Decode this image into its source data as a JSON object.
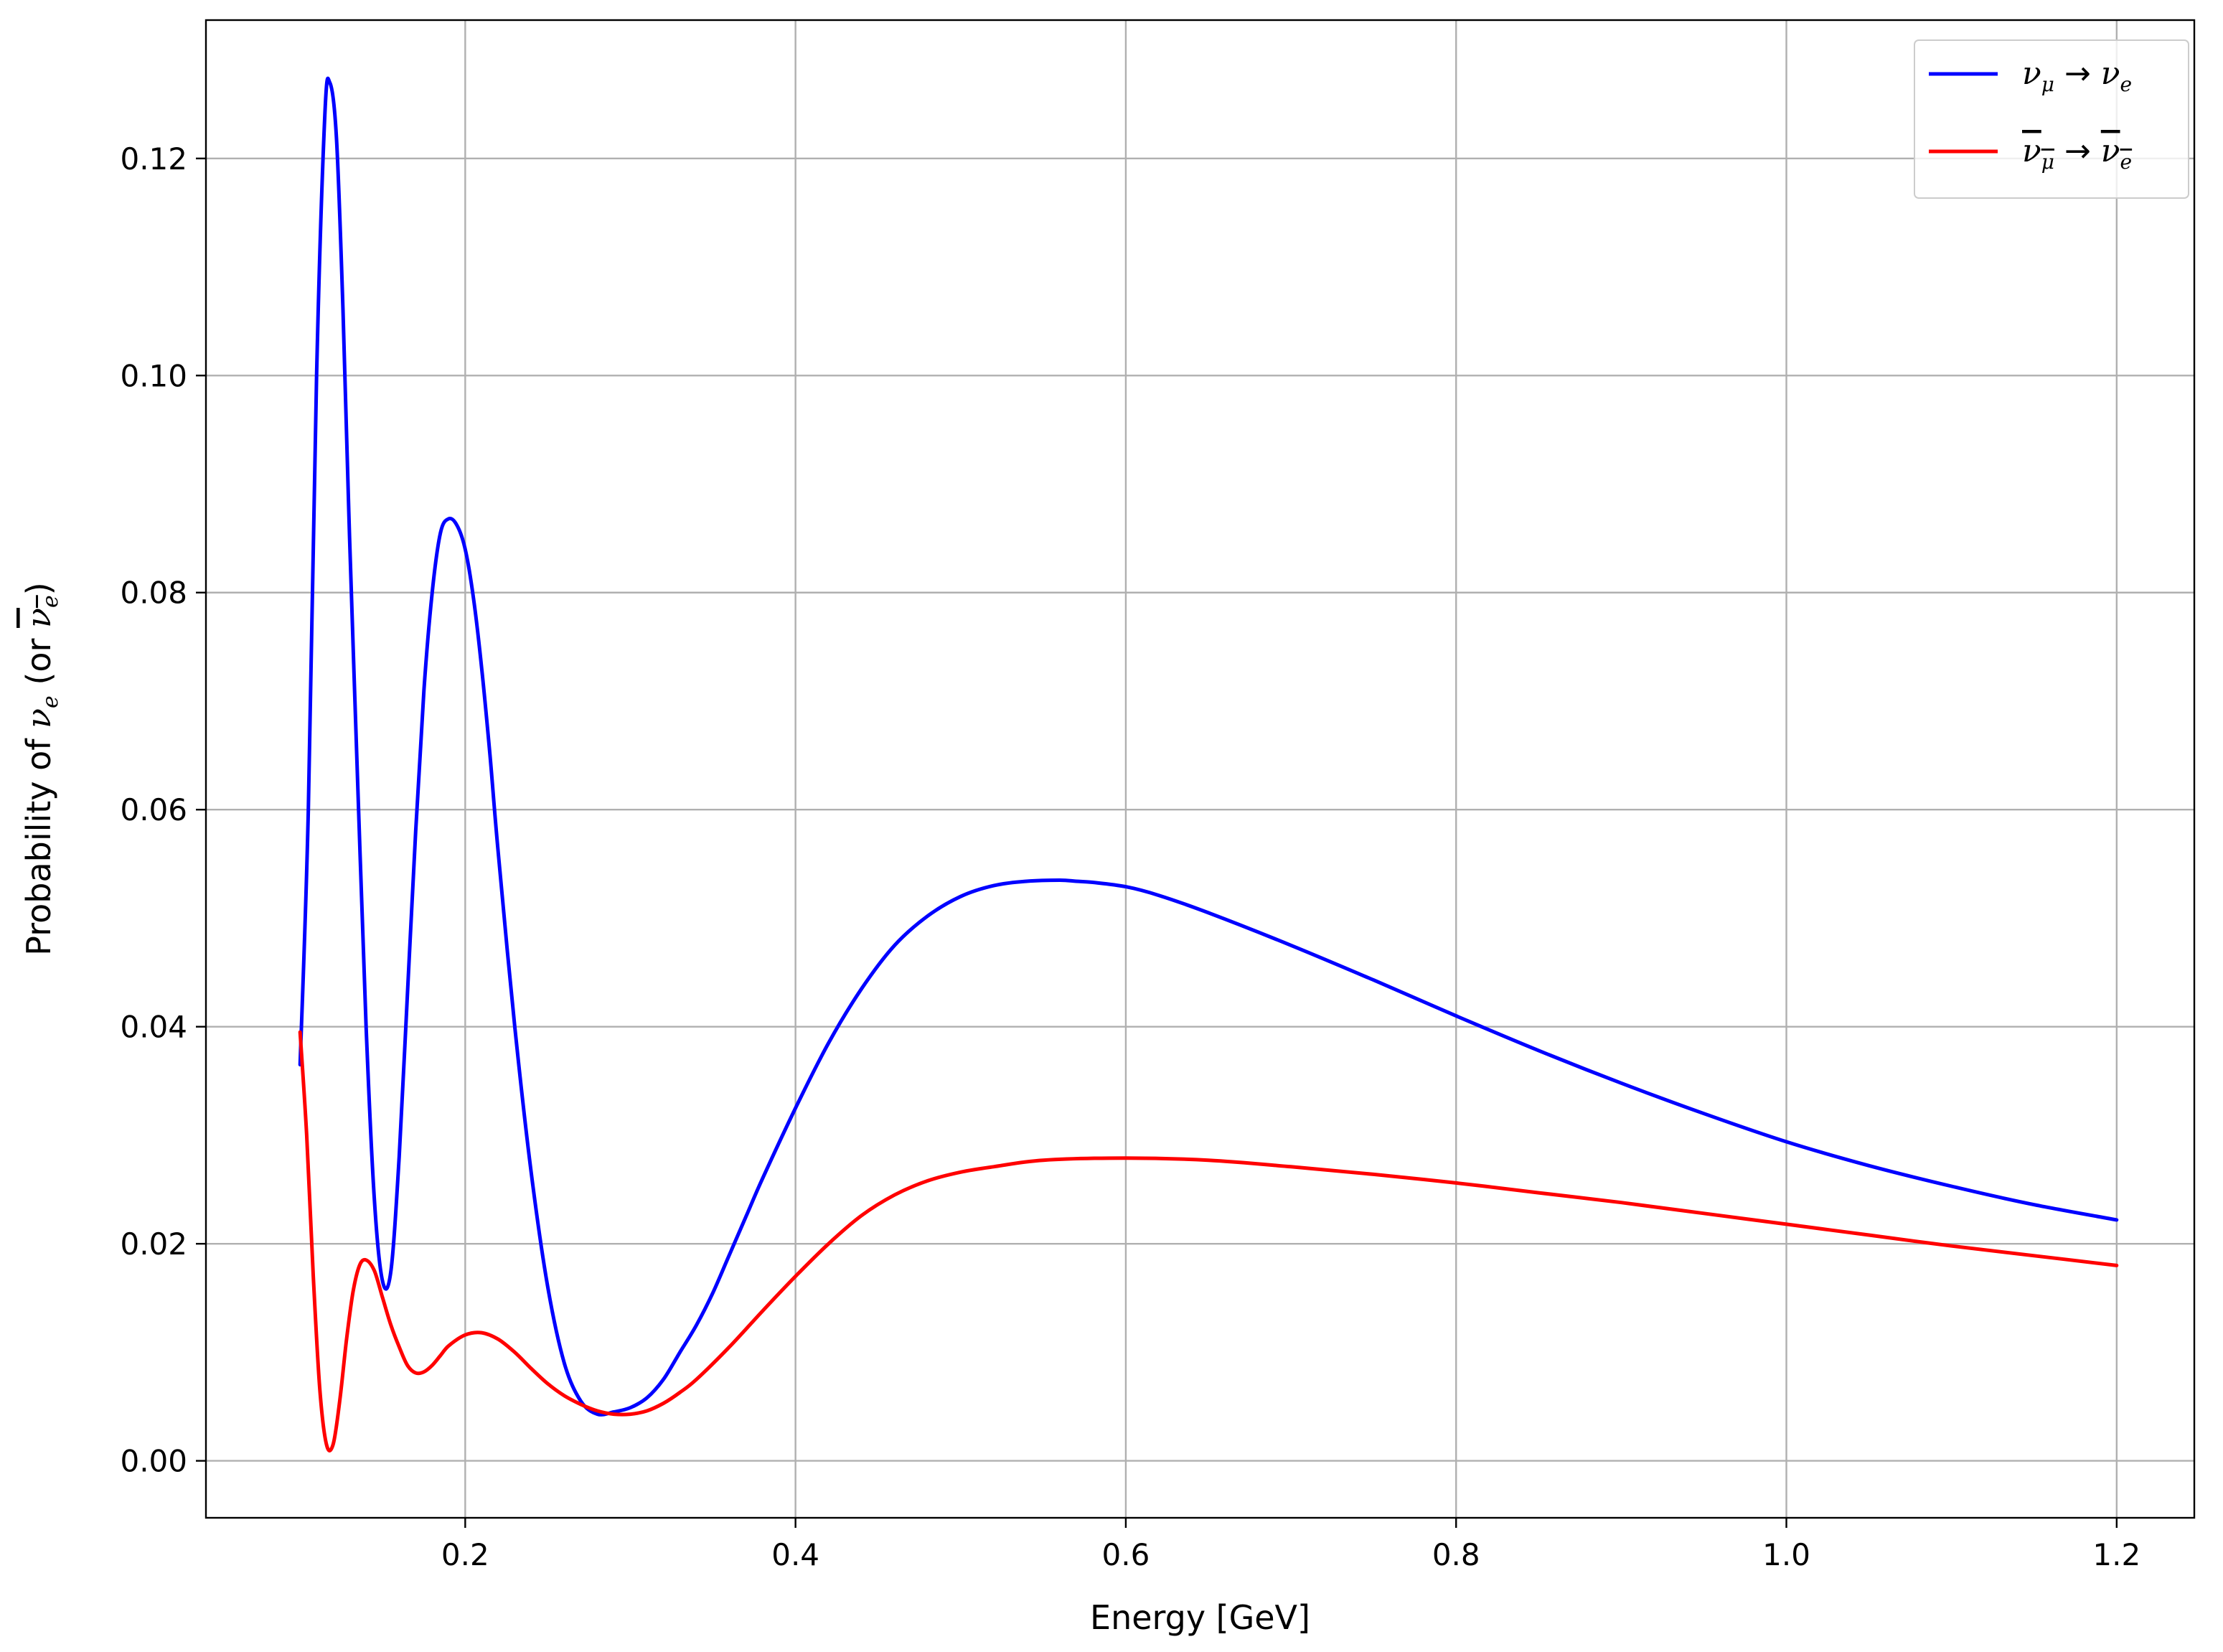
{
  "chart_data": {
    "type": "line",
    "title": "",
    "xlabel": "Energy [GeV]",
    "ylabel": "Probability of νe (or νe)",
    "ylabel_parts": {
      "prefix": "Probability of ",
      "nu_symbol": "ν",
      "nu_sub": "e",
      "or_text": " (or ",
      "bar_nu_symbol": "ν",
      "bar_nu_sub": "e",
      "close": ")"
    },
    "xlim": [
      0.043,
      1.247
    ],
    "ylim": [
      -0.00525,
      0.13275
    ],
    "x_ticks": [
      0.2,
      0.4,
      0.6,
      0.8,
      1.0,
      1.2
    ],
    "x_tick_labels": [
      "0.2",
      "0.4",
      "0.6",
      "0.8",
      "1.0",
      "1.2"
    ],
    "y_ticks": [
      0.0,
      0.02,
      0.04,
      0.06,
      0.08,
      0.1,
      0.12
    ],
    "y_tick_labels": [
      "0.00",
      "0.02",
      "0.04",
      "0.06",
      "0.08",
      "0.10",
      "0.12"
    ],
    "grid": true,
    "legend_position": "top-right",
    "series": [
      {
        "name": "νμ → νe",
        "legend": {
          "a": "ν",
          "a_sub": "μ",
          "arrow": "→",
          "b": "ν",
          "b_sub": "e",
          "bar": false
        },
        "color": "#0000ff",
        "x": [
          0.1,
          0.105,
          0.11,
          0.115,
          0.118,
          0.122,
          0.126,
          0.13,
          0.135,
          0.14,
          0.145,
          0.15,
          0.155,
          0.16,
          0.165,
          0.17,
          0.175,
          0.18,
          0.185,
          0.19,
          0.195,
          0.2,
          0.205,
          0.21,
          0.215,
          0.22,
          0.23,
          0.24,
          0.25,
          0.26,
          0.27,
          0.28,
          0.29,
          0.3,
          0.31,
          0.32,
          0.33,
          0.34,
          0.35,
          0.36,
          0.37,
          0.38,
          0.4,
          0.42,
          0.44,
          0.46,
          0.48,
          0.5,
          0.52,
          0.54,
          0.56,
          0.57,
          0.58,
          0.6,
          0.62,
          0.65,
          0.7,
          0.75,
          0.8,
          0.85,
          0.9,
          0.95,
          1.0,
          1.05,
          1.1,
          1.15,
          1.2
        ],
        "y": [
          0.0365,
          0.06,
          0.1,
          0.124,
          0.127,
          0.122,
          0.106,
          0.085,
          0.062,
          0.04,
          0.024,
          0.0165,
          0.0175,
          0.028,
          0.043,
          0.058,
          0.071,
          0.08,
          0.0855,
          0.0868,
          0.0862,
          0.084,
          0.0795,
          0.073,
          0.065,
          0.056,
          0.04,
          0.0265,
          0.016,
          0.009,
          0.0055,
          0.0043,
          0.0045,
          0.0049,
          0.0058,
          0.0075,
          0.01,
          0.0125,
          0.0155,
          0.019,
          0.0225,
          0.026,
          0.0325,
          0.0385,
          0.0435,
          0.0475,
          0.0502,
          0.052,
          0.053,
          0.0534,
          0.0535,
          0.0534,
          0.0533,
          0.0529,
          0.0521,
          0.0505,
          0.0475,
          0.0443,
          0.041,
          0.0378,
          0.0348,
          0.032,
          0.0294,
          0.0272,
          0.0253,
          0.0236,
          0.0222
        ]
      },
      {
        "name": "νμ → νe (antineutrino)",
        "legend": {
          "a": "ν",
          "a_sub": "μ",
          "arrow": "→",
          "b": "ν",
          "b_sub": "e",
          "bar": true
        },
        "color": "#ff0000",
        "x": [
          0.1,
          0.104,
          0.108,
          0.112,
          0.116,
          0.12,
          0.124,
          0.128,
          0.132,
          0.136,
          0.14,
          0.145,
          0.15,
          0.155,
          0.16,
          0.165,
          0.17,
          0.175,
          0.18,
          0.185,
          0.19,
          0.2,
          0.21,
          0.22,
          0.23,
          0.24,
          0.25,
          0.26,
          0.27,
          0.28,
          0.29,
          0.3,
          0.31,
          0.32,
          0.33,
          0.34,
          0.36,
          0.38,
          0.4,
          0.42,
          0.44,
          0.46,
          0.48,
          0.5,
          0.52,
          0.55,
          0.6,
          0.65,
          0.7,
          0.75,
          0.8,
          0.85,
          0.9,
          0.95,
          1.0,
          1.05,
          1.1,
          1.15,
          1.2
        ],
        "y": [
          0.0395,
          0.03,
          0.017,
          0.0065,
          0.0015,
          0.0015,
          0.0055,
          0.011,
          0.0155,
          0.018,
          0.0185,
          0.0175,
          0.015,
          0.0125,
          0.0105,
          0.0088,
          0.0081,
          0.0082,
          0.0088,
          0.0097,
          0.0106,
          0.0116,
          0.0118,
          0.0112,
          0.01,
          0.0085,
          0.0071,
          0.006,
          0.0052,
          0.0046,
          0.0043,
          0.0043,
          0.0046,
          0.0053,
          0.0063,
          0.0075,
          0.0105,
          0.0138,
          0.017,
          0.02,
          0.0226,
          0.0245,
          0.0258,
          0.0266,
          0.0271,
          0.0277,
          0.0279,
          0.0277,
          0.0271,
          0.0264,
          0.0256,
          0.0247,
          0.0238,
          0.0228,
          0.0218,
          0.0208,
          0.0198,
          0.0189,
          0.018
        ]
      }
    ]
  }
}
